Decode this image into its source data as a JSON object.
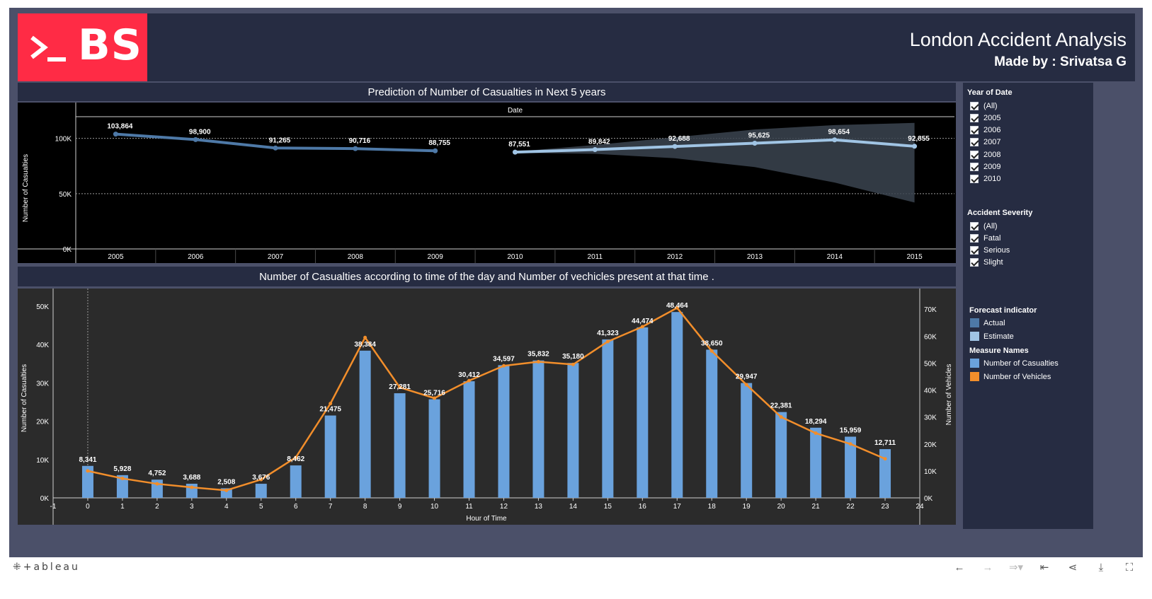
{
  "dashboard": {
    "logo_text": "BS",
    "title": "London Accident Analysis",
    "subtitle": "Made by : Srivatsa G"
  },
  "filters": {
    "year": {
      "title": "Year of Date",
      "items": [
        "(All)",
        "2005",
        "2006",
        "2007",
        "2008",
        "2009",
        "2010"
      ]
    },
    "severity": {
      "title": "Accident Severity",
      "items": [
        "(All)",
        "Fatal",
        "Serious",
        "Slight"
      ]
    }
  },
  "legends": {
    "forecast": {
      "title": "Forecast indicator",
      "items": [
        {
          "label": "Actual",
          "color": "#4e79a7"
        },
        {
          "label": "Estimate",
          "color": "#a0c4e4"
        }
      ]
    },
    "measures": {
      "title": "Measure Names",
      "items": [
        {
          "label": "Number of Casualties",
          "color": "#6aa2dd"
        },
        {
          "label": "Number of Vehicles",
          "color": "#f28e2b"
        }
      ]
    }
  },
  "footer": {
    "brand": "+ableau",
    "icons": [
      "undo-icon",
      "redo-icon",
      "revert-icon",
      "reset-icon",
      "share-icon",
      "download-icon",
      "fullscreen-icon"
    ]
  },
  "chart_data": [
    {
      "type": "line",
      "title": "Prediction of Number of Casualties in Next 5 years",
      "column_header": "Date",
      "ylabel": "Number of Casualties",
      "ylim": [
        0,
        110000
      ],
      "yticks": [
        0,
        50000,
        100000
      ],
      "ytick_labels": [
        "0K",
        "50K",
        "100K"
      ],
      "x": [
        "2005",
        "2006",
        "2007",
        "2008",
        "2009",
        "2010",
        "2011",
        "2012",
        "2013",
        "2014",
        "2015"
      ],
      "series": [
        {
          "name": "Actual",
          "x": [
            "2005",
            "2006",
            "2007",
            "2008",
            "2009"
          ],
          "values": [
            103864,
            98900,
            91265,
            90716,
            88755
          ]
        },
        {
          "name": "Estimate",
          "x": [
            "2010",
            "2011",
            "2012",
            "2013",
            "2014",
            "2015"
          ],
          "values": [
            87551,
            89842,
            92688,
            95625,
            98654,
            92855
          ]
        }
      ],
      "labels": [
        "103,864",
        "98,900",
        "91,265",
        "90,716",
        "88,755",
        "87,551",
        "89,842",
        "92,688",
        "95,625",
        "98,654",
        "92,855"
      ],
      "band_upper": [
        88000,
        94000,
        101000,
        108000,
        112000,
        114000
      ],
      "band_lower": [
        87000,
        86000,
        82000,
        74000,
        60000,
        42000
      ],
      "grid": true
    },
    {
      "type": "bar",
      "title": "Number of Casualties according to time of the day and Number of vechicles present at that time .",
      "xlabel": "Hour of Time",
      "ylabel": "Number of Casualties",
      "y2label": "Number of Vehicles",
      "xlim": [
        -1,
        24
      ],
      "xticks": [
        -1,
        0,
        1,
        2,
        3,
        4,
        5,
        6,
        7,
        8,
        9,
        10,
        11,
        12,
        13,
        14,
        15,
        16,
        17,
        18,
        19,
        20,
        21,
        22,
        23,
        24
      ],
      "ylim": [
        0,
        52000
      ],
      "yticks": [
        0,
        10000,
        20000,
        30000,
        40000,
        50000
      ],
      "ytick_labels": [
        "0K",
        "10K",
        "20K",
        "30K",
        "40K",
        "50K"
      ],
      "y2lim": [
        0,
        74000
      ],
      "y2ticks": [
        0,
        10000,
        20000,
        30000,
        40000,
        50000,
        60000,
        70000
      ],
      "y2tick_labels": [
        "0K",
        "10K",
        "20K",
        "30K",
        "40K",
        "50K",
        "60K",
        "70K"
      ],
      "categories": [
        0,
        1,
        2,
        3,
        4,
        5,
        6,
        7,
        8,
        9,
        10,
        11,
        12,
        13,
        14,
        15,
        16,
        17,
        18,
        19,
        20,
        21,
        22,
        23
      ],
      "series": [
        {
          "name": "Number of Casualties",
          "type": "bar",
          "values": [
            8341,
            5928,
            4752,
            3688,
            2508,
            3676,
            8462,
            21475,
            38384,
            27281,
            25716,
            30412,
            34597,
            35832,
            35180,
            41323,
            44474,
            48464,
            38650,
            29947,
            22381,
            18294,
            15959,
            12711
          ]
        },
        {
          "name": "Number of Vehicles",
          "type": "line",
          "axis": "right",
          "values": [
            10000,
            7200,
            5200,
            3900,
            2800,
            6800,
            15000,
            35000,
            59500,
            41000,
            37000,
            43500,
            49000,
            50500,
            49500,
            58000,
            63500,
            70500,
            54500,
            42000,
            30000,
            24000,
            20000,
            14500
          ]
        }
      ],
      "labels": [
        "8,341",
        "5,928",
        "4,752",
        "3,688",
        "2,508",
        "3,676",
        "8,462",
        "21,475",
        "38,384",
        "27,281",
        "25,716",
        "30,412",
        "34,597",
        "35,832",
        "35,180",
        "41,323",
        "44,474",
        "48,464",
        "38,650",
        "29,947",
        "22,381",
        "18,294",
        "15,959",
        "12,711"
      ]
    }
  ]
}
